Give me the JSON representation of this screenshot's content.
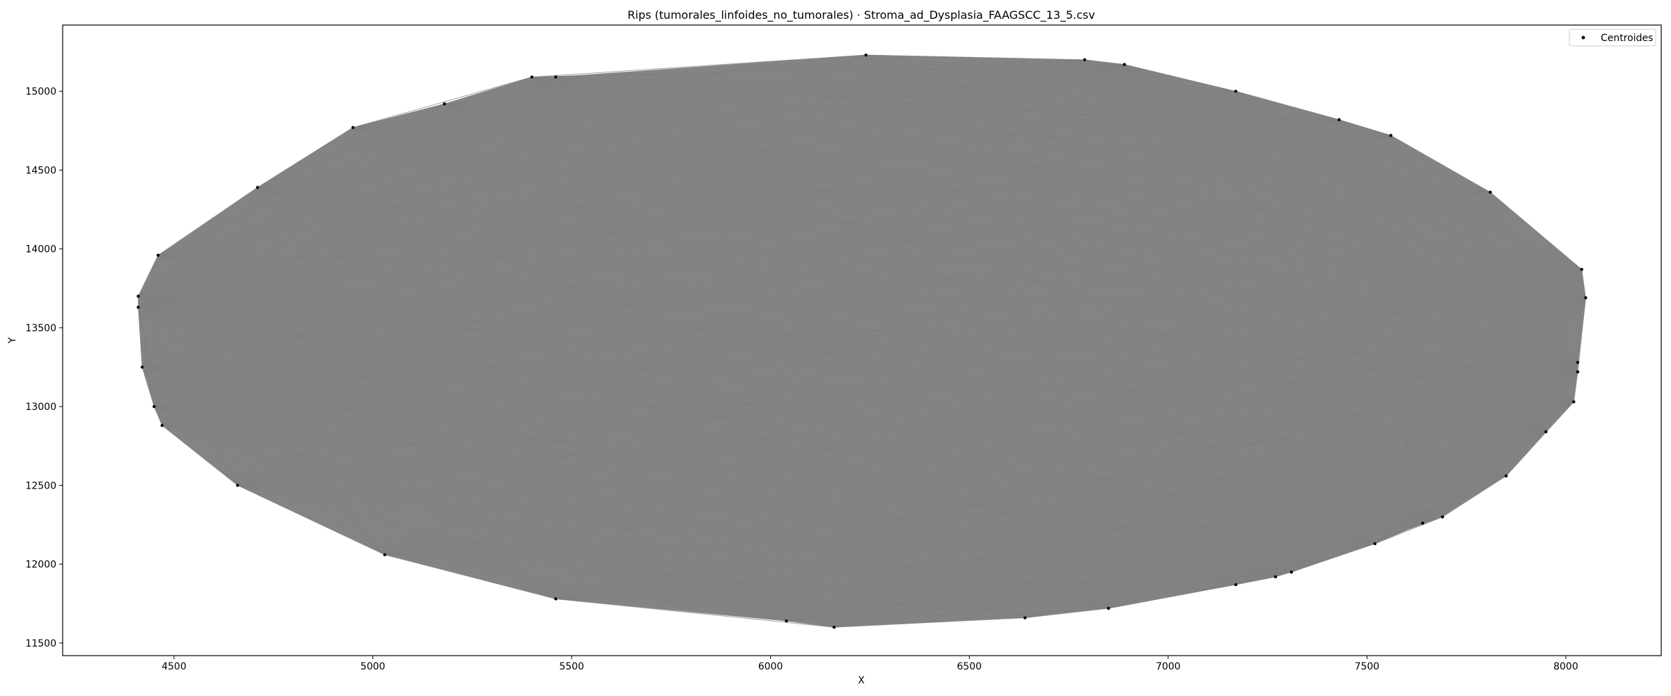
{
  "chart_data": {
    "type": "scatter",
    "title": "Rips (tumorales_linfoides_no_tumorales) · Stroma_ad_Dysplasia_FAAGSCC_13_5.csv",
    "xlabel": "X",
    "ylabel": "Y",
    "xlim": [
      4220,
      8240
    ],
    "ylim": [
      11420,
      15420
    ],
    "xticks": [
      4500,
      5000,
      5500,
      6000,
      6500,
      7000,
      7500,
      8000
    ],
    "yticks": [
      11500,
      12000,
      12500,
      13000,
      13500,
      14000,
      14500,
      15000
    ],
    "grid": false,
    "legend_position": "top-right",
    "edge_color": "#808080",
    "point_color": "#000000",
    "series": [
      {
        "name": "Centroides",
        "x": [
          4410,
          4410,
          4420,
          4450,
          4460,
          4470,
          4660,
          4710,
          4950,
          5030,
          5180,
          5400,
          5460,
          5460,
          6040,
          6160,
          6240,
          6640,
          6790,
          6850,
          6890,
          7170,
          7170,
          7270,
          7310,
          7430,
          7520,
          7560,
          7640,
          7690,
          7810,
          7850,
          7950,
          8020,
          8030,
          8030,
          8040,
          8050
        ],
        "y": [
          13700,
          13630,
          13250,
          13000,
          13960,
          12880,
          12500,
          14390,
          14770,
          12060,
          14920,
          15090,
          15090,
          11780,
          11640,
          11600,
          15230,
          11660,
          15200,
          11720,
          15170,
          11870,
          15000,
          11920,
          11950,
          14820,
          12130,
          14720,
          12260,
          12300,
          14360,
          12560,
          12840,
          13030,
          13220,
          13280,
          13870,
          13690
        ]
      }
    ]
  }
}
